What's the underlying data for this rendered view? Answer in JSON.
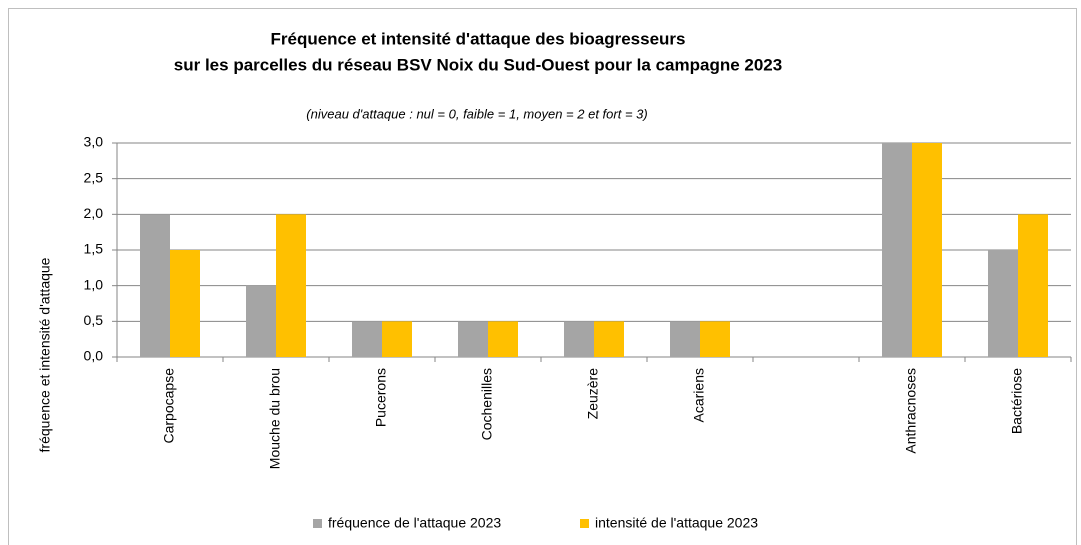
{
  "chart_data": {
    "type": "bar",
    "title": [
      "Fréquence et intensité d'attaque des bioagresseurs",
      "sur les parcelles du réseau BSV Noix du Sud-Ouest pour la campagne 2023"
    ],
    "subtitle": "(niveau d'attaque : nul = 0, faible = 1, moyen = 2 et fort = 3)",
    "y_label": "fréquence et intensité d'attaque",
    "categories": [
      "Carpocapse",
      "Mouche du brou",
      "Pucerons",
      "Cochenilles",
      "Zeuzère",
      "Acariens",
      null,
      "Anthracnoses",
      "Bactériose"
    ],
    "series": [
      {
        "name": "fréquence de l'attaque 2023",
        "color": "#a5a5a5",
        "values": [
          2,
          1,
          0.5,
          0.5,
          0.5,
          0.5,
          null,
          3,
          1.5
        ]
      },
      {
        "name": "intensité de l'attaque 2023",
        "color": "#ffc000",
        "values": [
          1.5,
          2,
          0.5,
          0.5,
          0.5,
          0.5,
          null,
          3,
          2
        ]
      }
    ],
    "ylim": [
      0,
      3
    ],
    "yticks": [
      {
        "value": 0,
        "label": "0,0"
      },
      {
        "value": 0.5,
        "label": "0,5"
      },
      {
        "value": 1,
        "label": "1,0"
      },
      {
        "value": 1.5,
        "label": "1,5"
      },
      {
        "value": 2,
        "label": "2,0"
      },
      {
        "value": 2.5,
        "label": "2,5"
      },
      {
        "value": 3,
        "label": "3,0"
      }
    ],
    "grid": true,
    "legend": "bottom"
  }
}
